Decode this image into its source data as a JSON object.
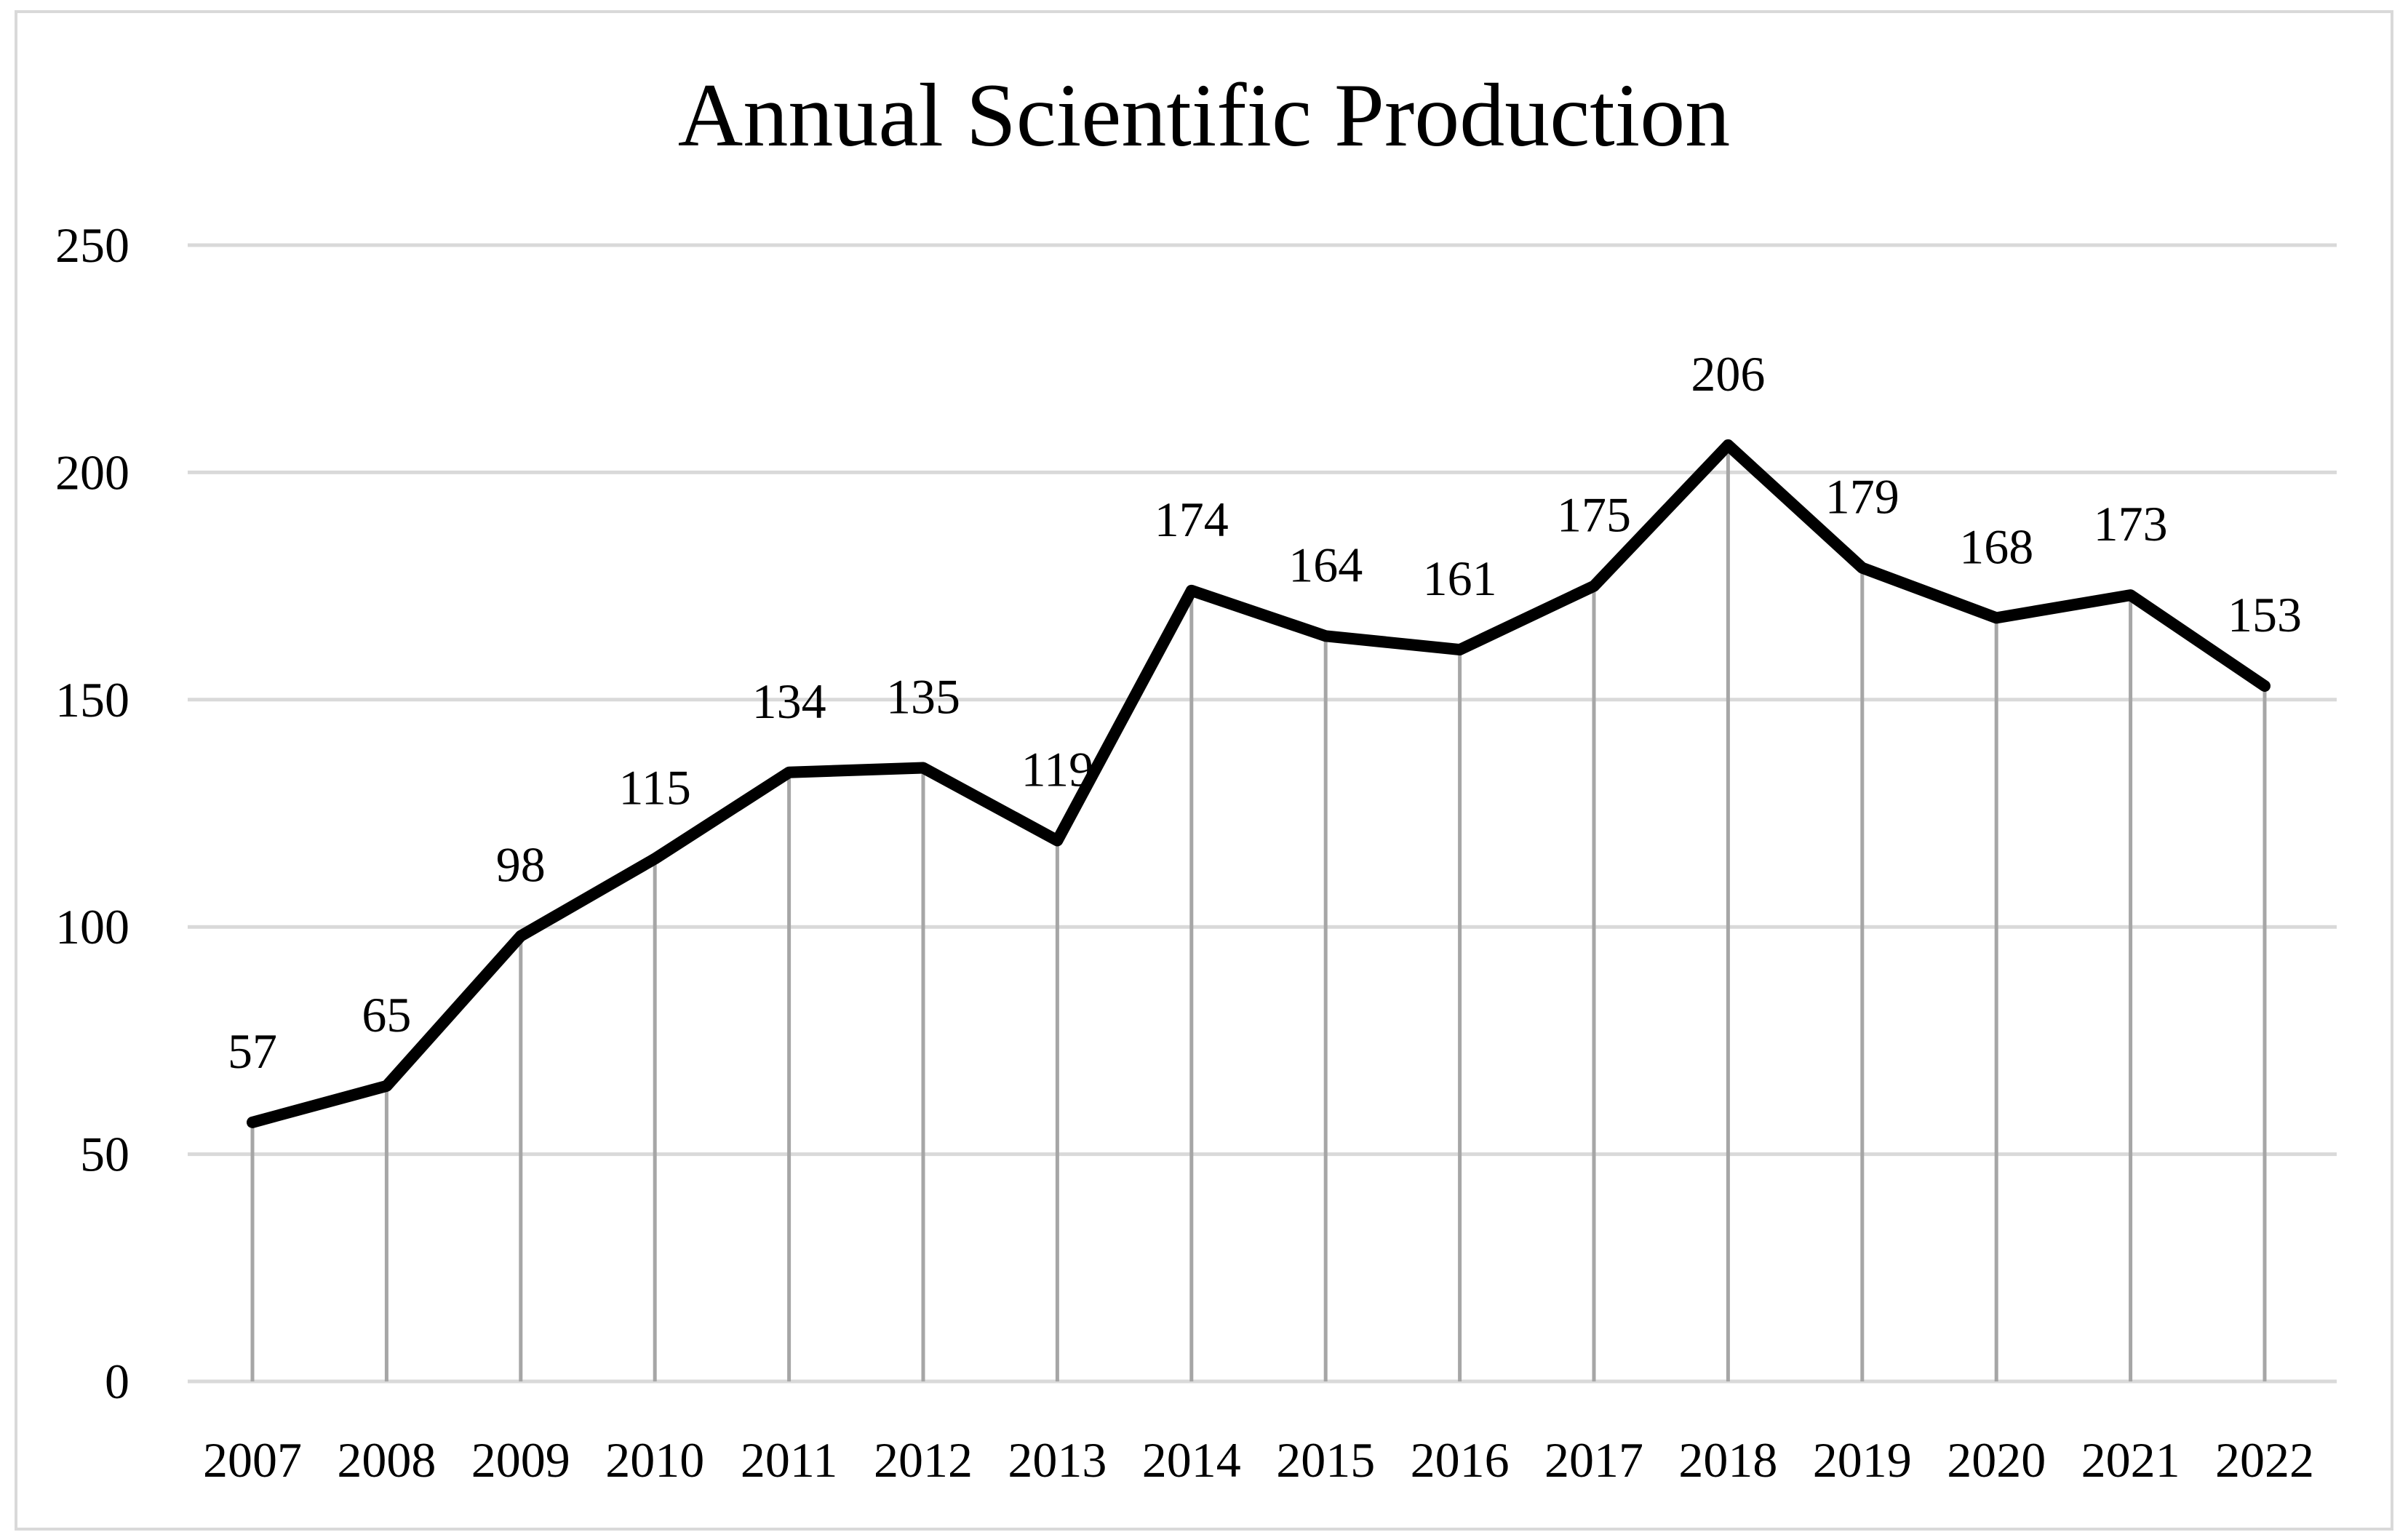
{
  "chart_data": {
    "type": "line",
    "title": "Annual Scientific Production",
    "xlabel": "",
    "ylabel": "",
    "categories": [
      "2007",
      "2008",
      "2009",
      "2010",
      "2011",
      "2012",
      "2013",
      "2014",
      "2015",
      "2016",
      "2017",
      "2018",
      "2019",
      "2020",
      "2021",
      "2022"
    ],
    "series": [
      {
        "name": "Annual Scientific Production",
        "values": [
          57,
          65,
          98,
          115,
          134,
          135,
          119,
          174,
          164,
          161,
          175,
          206,
          179,
          168,
          173,
          153
        ]
      }
    ],
    "ylim": [
      0,
      250
    ],
    "yticks": [
      0,
      50,
      100,
      150,
      200,
      250
    ],
    "grid": true,
    "drop_lines": true,
    "data_labels": true,
    "legend": "none",
    "colors": {
      "line": "#000000",
      "grid": "#d9d9d9",
      "drop_lines": "#a6a6a6",
      "border": "#d9d9d9"
    }
  }
}
